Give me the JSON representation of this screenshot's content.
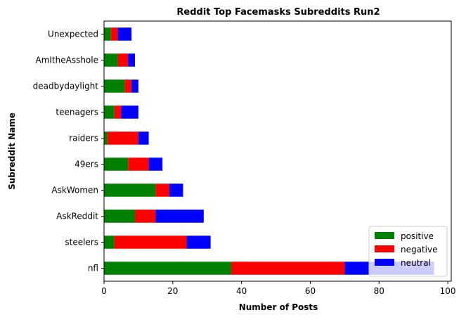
{
  "chart_data": {
    "type": "bar",
    "orientation": "horizontal",
    "stacked": true,
    "title": "Reddit Top Facemasks Subreddits Run2",
    "xlabel": "Number of Posts",
    "ylabel": "Subreddit Name",
    "xlim": [
      0,
      101
    ],
    "xticks": [
      0,
      20,
      40,
      60,
      80,
      100
    ],
    "grid": false,
    "legend_position": "lower-right",
    "categories": [
      "nfl",
      "steelers",
      "AskReddit",
      "AskWomen",
      "49ers",
      "raiders",
      "teenagers",
      "deadbydaylight",
      "AmItheAsshole",
      "Unexpected"
    ],
    "series": [
      {
        "name": "positive",
        "color": "#008000",
        "values": [
          37,
          3,
          9,
          15,
          7,
          1,
          3,
          6,
          4,
          2
        ]
      },
      {
        "name": "negative",
        "color": "#ff0000",
        "values": [
          33,
          21,
          6,
          4,
          6,
          9,
          2,
          2,
          3,
          2
        ]
      },
      {
        "name": "neutral",
        "color": "#0000ff",
        "values": [
          26,
          7,
          14,
          4,
          4,
          3,
          5,
          2,
          2,
          4
        ]
      }
    ]
  }
}
